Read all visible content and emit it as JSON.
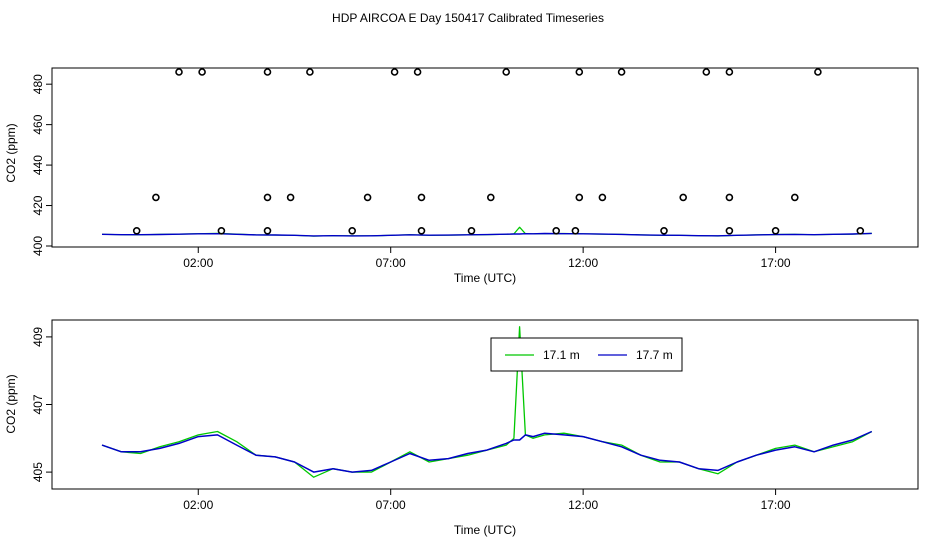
{
  "title": "HDP AIRCOA E  Day 150417  Calibrated Timeseries",
  "colors": {
    "series_a": "#00c800",
    "series_b": "#0000c8",
    "frame": "#000000"
  },
  "chart_data": [
    {
      "type": "scatter",
      "panel": "top",
      "xlabel": "Time (UTC)",
      "ylabel": "CO2 (ppm)",
      "x_unit": "hours UTC",
      "xlim": [
        -1.8,
        20.7
      ],
      "ylim": [
        399.5,
        488
      ],
      "xticks": [
        2,
        7,
        12,
        17
      ],
      "xtick_labels": [
        "02:00",
        "07:00",
        "12:00",
        "17:00"
      ],
      "yticks": [
        400,
        420,
        440,
        460,
        480
      ],
      "yticks_labels": [
        "400",
        "420",
        "440",
        "460",
        "480"
      ],
      "grid": false,
      "calibration_points": {
        "name": "",
        "x": [
          1.5,
          2.1,
          3.8,
          4.9,
          7.1,
          7.7,
          10.0,
          11.9,
          13.0,
          15.2,
          15.8,
          18.1,
          0.9,
          3.8,
          4.4,
          6.4,
          7.8,
          9.6,
          11.9,
          12.5,
          14.6,
          15.8,
          17.5,
          0.4,
          2.6,
          3.8,
          6.0,
          7.8,
          9.1,
          11.3,
          11.8,
          14.1,
          15.8,
          17.0,
          19.2
        ],
        "y": [
          486,
          486,
          486,
          486,
          486,
          486,
          486,
          486,
          486,
          486,
          486,
          486,
          424,
          424,
          424,
          424,
          424,
          424,
          424,
          424,
          424,
          424,
          424,
          407.5,
          407.5,
          407.5,
          407.5,
          407.5,
          407.5,
          407.5,
          407.5,
          407.5,
          407.5,
          407.5,
          407.5
        ]
      },
      "series": [
        {
          "name": "17.1 m",
          "color": "#00c800",
          "linked_panel_data": true
        },
        {
          "name": "17.7 m",
          "color": "#0000c8",
          "linked_panel_data": true
        }
      ]
    },
    {
      "type": "line",
      "panel": "bottom",
      "xlabel": "Time (UTC)",
      "ylabel": "CO2 (ppm)",
      "x_unit": "hours UTC",
      "xlim": [
        -1.8,
        20.7
      ],
      "ylim": [
        404.5,
        409.5
      ],
      "xticks": [
        2,
        7,
        12,
        17
      ],
      "xtick_labels": [
        "02:00",
        "07:00",
        "12:00",
        "17:00"
      ],
      "yticks": [
        405,
        407,
        409
      ],
      "yticks_labels": [
        "405",
        "407",
        "409"
      ],
      "grid": false,
      "legend": {
        "position": "top-center",
        "entries": [
          "17.1 m",
          "17.7 m"
        ]
      },
      "x": [
        -0.5,
        0.0,
        0.5,
        1.0,
        1.5,
        2.0,
        2.5,
        3.0,
        3.5,
        4.0,
        4.5,
        5.0,
        5.5,
        6.0,
        6.5,
        7.0,
        7.5,
        8.0,
        8.5,
        9.0,
        9.5,
        10.0,
        10.2,
        10.35,
        10.5,
        10.7,
        11.0,
        11.5,
        12.0,
        12.5,
        13.0,
        13.5,
        14.0,
        14.5,
        15.0,
        15.5,
        16.0,
        16.5,
        17.0,
        17.5,
        18.0,
        18.5,
        19.0,
        19.5
      ],
      "series": [
        {
          "name": "17.1 m",
          "color": "#00c800",
          "values": [
            405.8,
            405.6,
            405.55,
            405.75,
            405.9,
            406.1,
            406.2,
            405.9,
            405.5,
            405.45,
            405.3,
            404.85,
            405.1,
            405.0,
            405.0,
            405.3,
            405.6,
            405.3,
            405.4,
            405.5,
            405.65,
            405.8,
            406.0,
            409.3,
            406.1,
            406.0,
            406.1,
            406.15,
            406.05,
            405.9,
            405.8,
            405.5,
            405.3,
            405.3,
            405.1,
            404.95,
            405.3,
            405.5,
            405.7,
            405.8,
            405.6,
            405.75,
            405.9,
            406.2
          ]
        },
        {
          "name": "17.7 m",
          "color": "#0000c8",
          "values": [
            405.8,
            405.6,
            405.6,
            405.7,
            405.85,
            406.05,
            406.1,
            405.8,
            405.5,
            405.45,
            405.3,
            405.0,
            405.1,
            405.0,
            405.05,
            405.3,
            405.55,
            405.35,
            405.4,
            405.55,
            405.65,
            405.85,
            405.95,
            405.95,
            406.1,
            406.05,
            406.15,
            406.1,
            406.05,
            405.9,
            405.75,
            405.5,
            405.35,
            405.3,
            405.1,
            405.05,
            405.3,
            405.5,
            405.65,
            405.75,
            405.6,
            405.8,
            405.95,
            406.2
          ]
        }
      ]
    }
  ]
}
